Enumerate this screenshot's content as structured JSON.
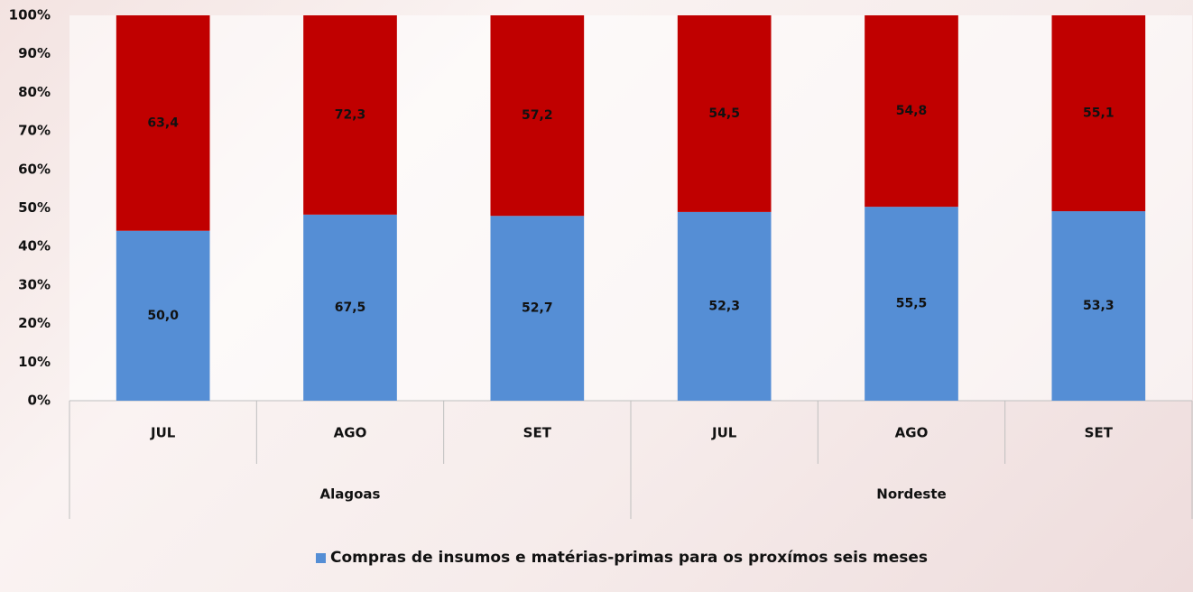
{
  "chart_data": {
    "type": "bar",
    "stacking": "percent",
    "categories": [
      "JUL",
      "AGO",
      "SET",
      "JUL",
      "AGO",
      "SET"
    ],
    "category_groups": [
      "Alagoas",
      "Alagoas",
      "Alagoas",
      "Nordeste",
      "Nordeste",
      "Nordeste"
    ],
    "series": [
      {
        "name": "Compras de insumos e matérias-primas para os proxímos seis meses",
        "color": "#558ed5",
        "values": [
          50.0,
          67.5,
          52.7,
          52.3,
          55.5,
          53.3
        ],
        "value_labels": [
          "50,0",
          "67,5",
          "52,7",
          "52,3",
          "55,5",
          "53,3"
        ]
      },
      {
        "color": "#c00000",
        "values": [
          63.4,
          72.3,
          57.2,
          54.5,
          54.8,
          55.1
        ],
        "value_labels": [
          "63,4",
          "72,3",
          "57,2",
          "54,5",
          "54,8",
          "55,1"
        ]
      }
    ],
    "ylim": [
      0,
      100
    ],
    "yticks": [
      {
        "value": 0,
        "label": "0%"
      },
      {
        "value": 10,
        "label": "10%"
      },
      {
        "value": 20,
        "label": "20%"
      },
      {
        "value": 30,
        "label": "30%"
      },
      {
        "value": 40,
        "label": "40%"
      },
      {
        "value": 50,
        "label": "50%"
      },
      {
        "value": 60,
        "label": "60%"
      },
      {
        "value": 70,
        "label": "70%"
      },
      {
        "value": 80,
        "label": "80%"
      },
      {
        "value": 90,
        "label": "90%"
      },
      {
        "value": 100,
        "label": "100%"
      }
    ],
    "grid": false,
    "legend": "bottom"
  }
}
